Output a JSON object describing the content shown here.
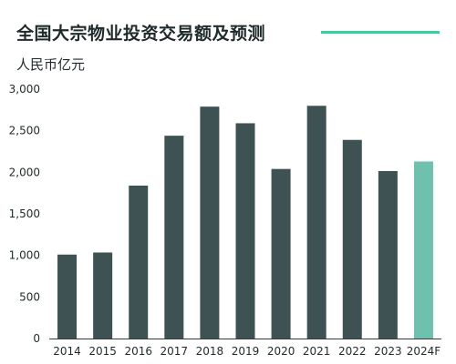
{
  "colors": {
    "bar": "#3f5253",
    "forecast": "#6fc1ad",
    "accent": "#2fd69a",
    "axis": "#2f3b3c"
  },
  "chart_data": {
    "type": "bar",
    "title": "全国大宗物业投资交易额及预测",
    "ylabel": "人民币亿元",
    "xlabel": "",
    "categories": [
      "2014",
      "2015",
      "2016",
      "2017",
      "2018",
      "2019",
      "2020",
      "2021",
      "2022",
      "2023",
      "2024F"
    ],
    "values": [
      1010,
      1035,
      1840,
      2440,
      2790,
      2590,
      2040,
      2800,
      2390,
      2015,
      2130
    ],
    "forecast_categories": [
      "2024F"
    ],
    "ylim": [
      0,
      3000
    ],
    "yticks": [
      0,
      500,
      1000,
      1500,
      2000,
      2500,
      3000
    ],
    "ytick_labels": [
      "0",
      "500",
      "1,000",
      "1,500",
      "2,000",
      "2,500",
      "3,000"
    ],
    "grid": false,
    "legend": "none"
  }
}
